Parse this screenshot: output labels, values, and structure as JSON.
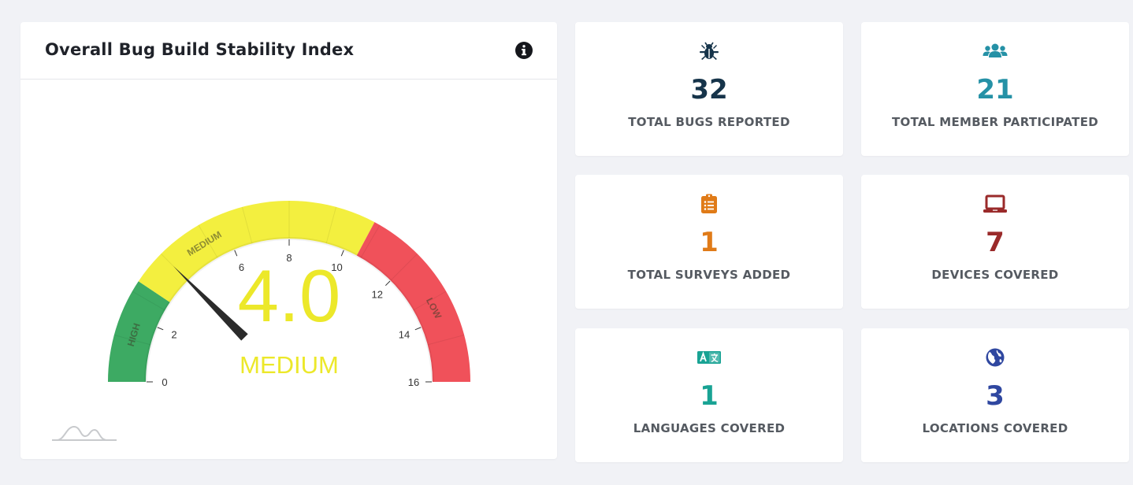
{
  "gauge": {
    "title": "Overall Bug Build Stability Index",
    "value": 4.0,
    "value_text": "4.0",
    "status_text": "MEDIUM",
    "min": 0,
    "max": 16,
    "tick_labels": [
      "0",
      "2",
      "6",
      "8",
      "10",
      "12",
      "14",
      "16"
    ],
    "band_labels": [
      "HIGH",
      "MEDIUM",
      "LOW"
    ],
    "colors": {
      "high": "#3daa63",
      "medium": "#f3ef3f",
      "low": "#f0515a",
      "value": "#ece82a"
    }
  },
  "stats": [
    {
      "id": "bugs",
      "icon": "bug-icon",
      "value": "32",
      "label": "TOTAL BUGS REPORTED",
      "color": "#16344a"
    },
    {
      "id": "members",
      "icon": "users-icon",
      "value": "21",
      "label": "TOTAL MEMBER PARTICIPATED",
      "color": "#2591a6"
    },
    {
      "id": "surveys",
      "icon": "clipboard-list-icon",
      "value": "1",
      "label": "TOTAL SURVEYS ADDED",
      "color": "#e07b18"
    },
    {
      "id": "devices",
      "icon": "laptop-icon",
      "value": "7",
      "label": "DEVICES COVERED",
      "color": "#9a2a2a"
    },
    {
      "id": "languages",
      "icon": "language-icon",
      "value": "1",
      "label": "LANGUAGES COVERED",
      "color": "#19a394"
    },
    {
      "id": "locations",
      "icon": "globe-icon",
      "value": "3",
      "label": "LOCATIONS COVERED",
      "color": "#2f47a0"
    }
  ]
}
